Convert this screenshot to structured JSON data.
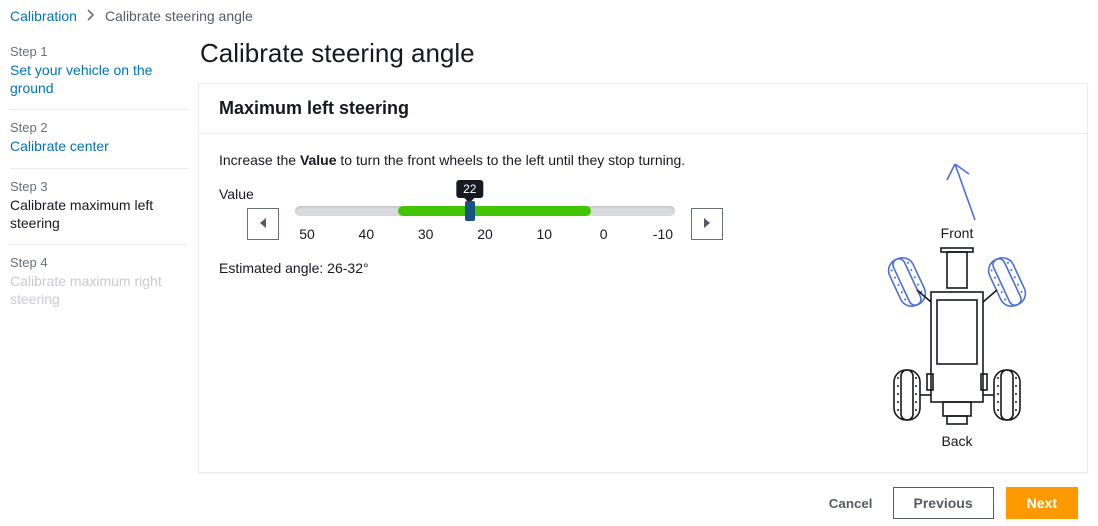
{
  "breadcrumb": {
    "root": "Calibration",
    "current": "Calibrate steering angle"
  },
  "sidebar": {
    "steps": [
      {
        "num": "Step 1",
        "title": "Set your vehicle on the ground",
        "state": "link"
      },
      {
        "num": "Step 2",
        "title": "Calibrate center",
        "state": "link"
      },
      {
        "num": "Step 3",
        "title": "Calibrate maximum left steering",
        "state": "current"
      },
      {
        "num": "Step 4",
        "title": "Calibrate maximum right steering",
        "state": "future"
      }
    ]
  },
  "title": "Calibrate steering angle",
  "panel": {
    "heading": "Maximum left steering",
    "instruction_pre": "Increase the ",
    "instruction_bold": "Value",
    "instruction_post": " to turn the front wheels to the left until they stop turning.",
    "value_label": "Value",
    "slider": {
      "ticks": [
        "50",
        "40",
        "30",
        "20",
        "10",
        "0",
        "-10"
      ],
      "tooltip": "22",
      "fill_start_pct": 27,
      "fill_end_pct": 78,
      "thumb_pct": 46,
      "track_bg": "#d9dcde",
      "fill_color": "#43c506",
      "thumb_color": "#16537e"
    },
    "estimated_label": "Estimated angle: 26-32°",
    "vehicle": {
      "front": "Front",
      "back": "Back"
    }
  },
  "footer": {
    "cancel": "Cancel",
    "previous": "Previous",
    "next": "Next"
  },
  "colors": {
    "link": "#0073bb",
    "primary": "#ff9900",
    "border": "#eaeded",
    "wheel_tilt": "#4a6fd8"
  }
}
